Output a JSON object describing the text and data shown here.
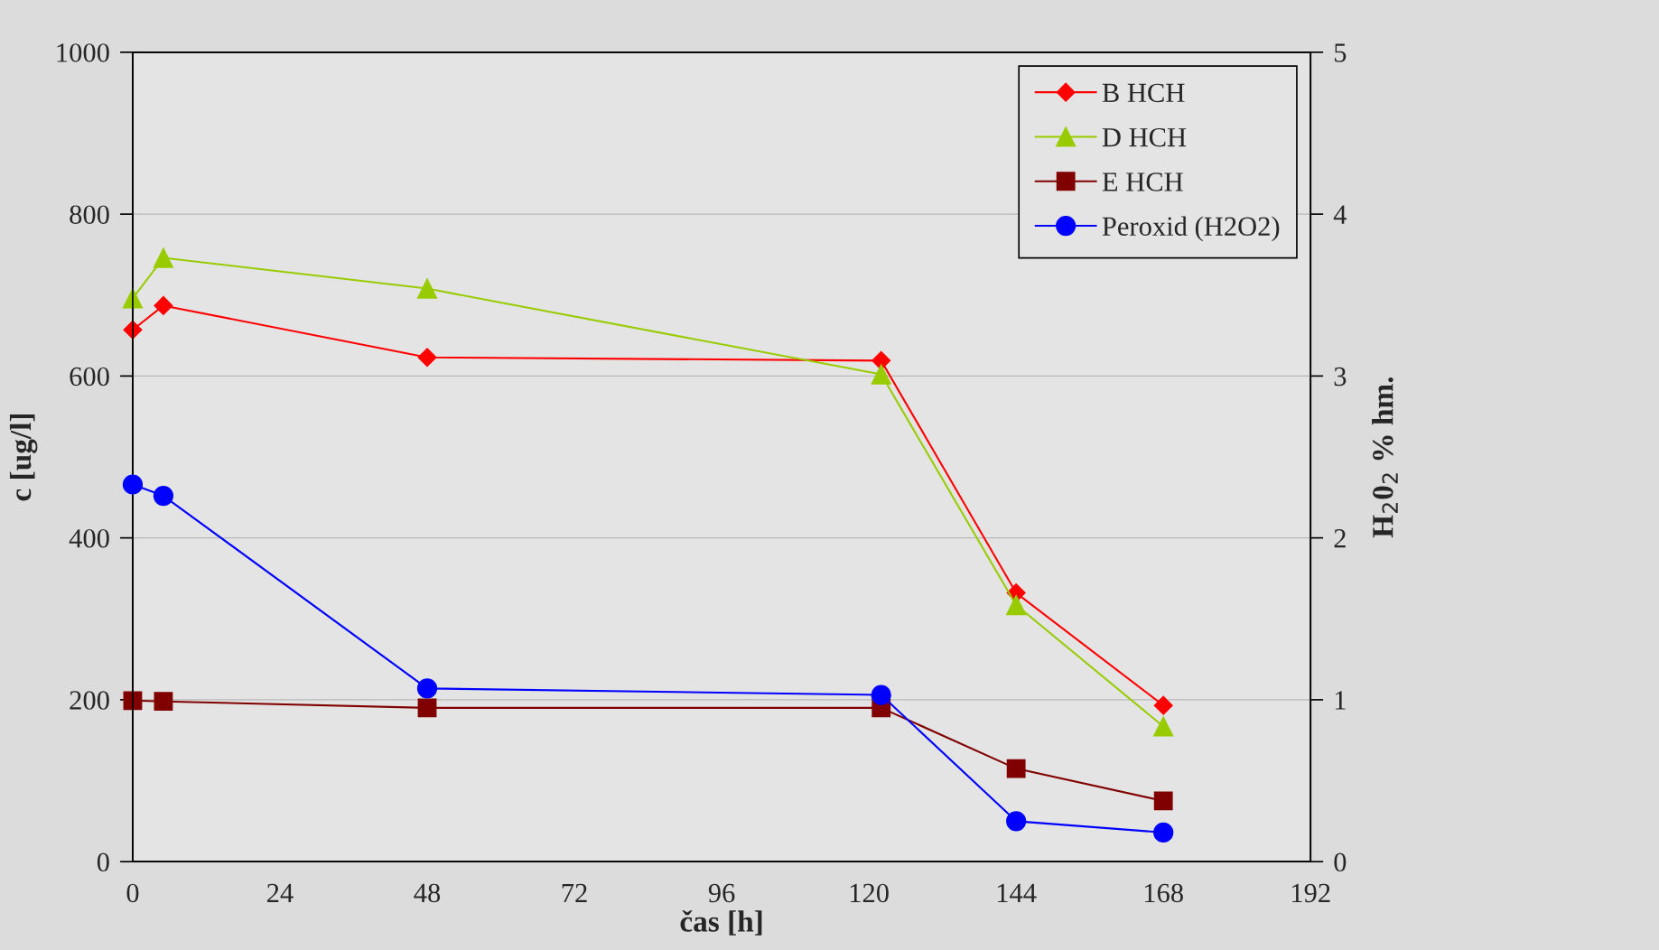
{
  "chart_data": {
    "type": "line",
    "xlabel": "čas [h]",
    "ylabel": "c [ug/l]",
    "y2label": "H$_{2}$0$_{2}$ % hm.",
    "x": [
      0,
      5,
      48,
      122,
      144,
      168
    ],
    "series": [
      {
        "name": "B HCH",
        "color": "#ff0000",
        "marker": "diamond",
        "values": [
          657,
          687,
          623,
          619,
          332,
          193
        ]
      },
      {
        "name": "D HCH",
        "color": "#99cc00",
        "marker": "triangle",
        "values": [
          696,
          746,
          708,
          602,
          317,
          167
        ]
      },
      {
        "name": "E HCH",
        "color": "#800000",
        "marker": "square",
        "values": [
          199,
          198,
          190,
          190,
          115,
          75
        ]
      },
      {
        "name": "Peroxid (H2O2)",
        "color": "#0000ff",
        "marker": "circle",
        "axis": "y2",
        "values": [
          2.33,
          2.26,
          1.07,
          1.03,
          0.25,
          0.18
        ]
      }
    ],
    "xlim": [
      0,
      192
    ],
    "xticks": [
      0,
      24,
      48,
      72,
      96,
      120,
      144,
      168,
      192
    ],
    "ylim": [
      0,
      1000
    ],
    "yticks": [
      0,
      200,
      400,
      600,
      800,
      1000
    ],
    "y2lim": [
      0,
      5
    ],
    "y2ticks": [
      0,
      1,
      2,
      3,
      4,
      5
    ],
    "grid": "y",
    "legend": "top right",
    "line_style": "solid"
  }
}
